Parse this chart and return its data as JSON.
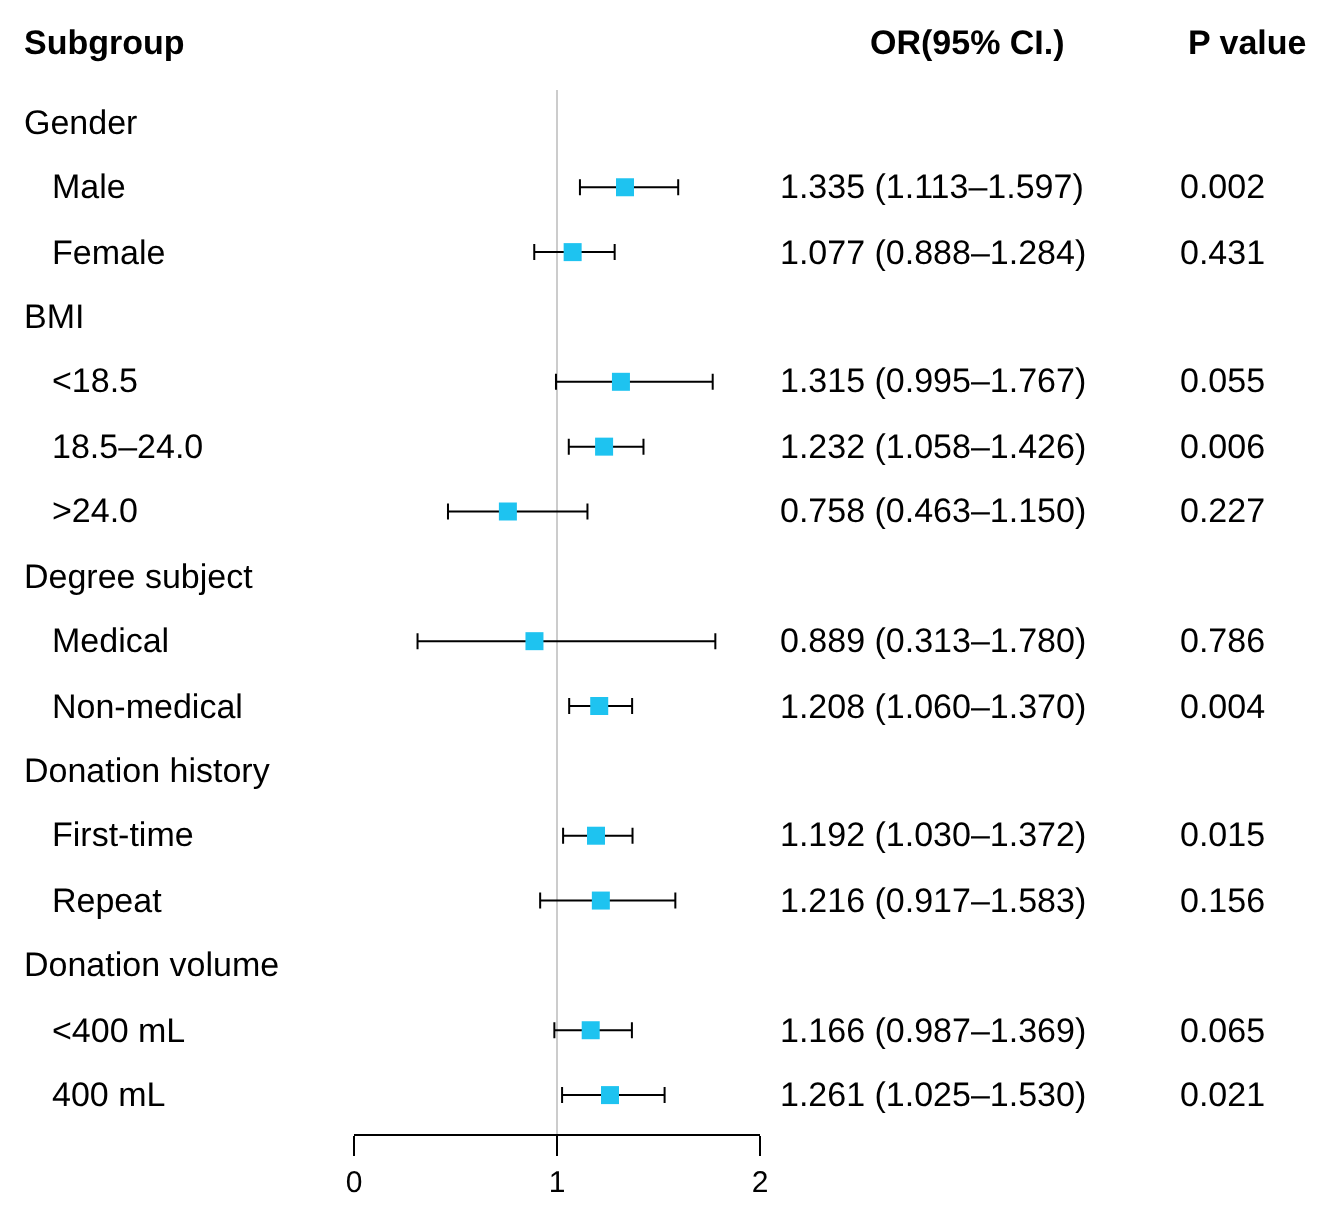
{
  "chart_data": {
    "type": "scatter",
    "orientation": "horizontal",
    "ylabel": "Subgroup",
    "categories": [
      null,
      "Male",
      "Female",
      null,
      "<18.5",
      "18.5–24.0",
      ">24.0",
      null,
      "Medical",
      "Non-medical",
      null,
      "First-time",
      "Repeat",
      null,
      "<400 mL",
      "400 mL"
    ],
    "values": [
      null,
      1.335,
      1.077,
      null,
      1.315,
      1.232,
      0.758,
      null,
      0.889,
      1.208,
      null,
      1.192,
      1.216,
      null,
      1.166,
      1.261
    ],
    "errors": [
      null,
      [
        1.113,
        1.597
      ],
      [
        0.888,
        1.284
      ],
      null,
      [
        0.995,
        1.767
      ],
      [
        1.058,
        1.426
      ],
      [
        0.463,
        1.15
      ],
      null,
      [
        0.313,
        1.78
      ],
      [
        1.06,
        1.37
      ],
      null,
      [
        1.03,
        1.372
      ],
      [
        0.917,
        1.583
      ],
      null,
      [
        0.987,
        1.369
      ],
      [
        1.025,
        1.53
      ]
    ],
    "value_labels": [
      null,
      "1.335 (1.113–1.597)",
      "1.077 (0.888–1.284)",
      null,
      "1.315 (0.995–1.767)",
      "1.232 (1.058–1.426)",
      "0.758 (0.463–1.150)",
      null,
      "0.889 (0.313–1.780)",
      "1.208 (1.060–1.370)",
      null,
      "1.192 (1.030–1.372)",
      "1.216 (0.917–1.583)",
      null,
      "1.166 (0.987–1.369)",
      "1.261 (1.025–1.530)"
    ],
    "color": "#1ec3f0",
    "marker": "square",
    "xlim": [
      0,
      2
    ],
    "xticks": [
      0,
      1,
      2
    ],
    "grid": false,
    "ref_lines": [
      {
        "axis": "x",
        "value": 1,
        "color": "#cccccc"
      }
    ],
    "annotations": [
      "OR(95% CI.)",
      "P value",
      "Gender",
      "BMI",
      "Degree subject",
      "Donation history",
      "Donation volume",
      "0.002",
      "0.431",
      "0.055",
      "0.006",
      "0.227",
      "0.786",
      "0.004",
      "0.015",
      "0.156",
      "0.065",
      "0.021"
    ]
  }
}
